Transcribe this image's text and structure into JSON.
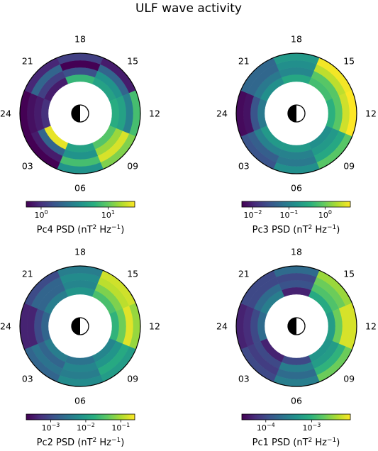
{
  "title": "ULF wave activity",
  "sun_icon": "half-shaded-sun-icon",
  "colormap": "viridis",
  "mlt_labels": [
    "18",
    "15",
    "12",
    "09",
    "06",
    "03",
    "24",
    "21"
  ],
  "chart_data": [
    {
      "type": "heatmap",
      "panel": "pc4",
      "label_main": "Pc4 PSD (nT",
      "label_sup1": "2",
      "label_mid": " Hz",
      "label_sup2": "−1",
      "label_end": ")",
      "colorbar_scale": "log",
      "colorbar_range": [
        0.6,
        25
      ],
      "colorbar_ticks": [
        {
          "value": 1,
          "base": "10",
          "exp": "0"
        },
        {
          "value": 10,
          "base": "10",
          "exp": "1"
        }
      ],
      "mlt_sectors": 8,
      "rings": 4,
      "values": [
        [
          7,
          1.5,
          0.6,
          1.2
        ],
        [
          5,
          4,
          2,
          0.8
        ],
        [
          6,
          5,
          3,
          8
        ],
        [
          9,
          14,
          20,
          12
        ],
        [
          5,
          4,
          8,
          4
        ],
        [
          22,
          2,
          0.8,
          0.6
        ],
        [
          1,
          0.8,
          0.7,
          0.6
        ],
        [
          0.8,
          1.2,
          2,
          0.9
        ]
      ]
    },
    {
      "type": "heatmap",
      "panel": "pc3",
      "label_main": "Pc3 PSD (nT",
      "label_sup1": "2",
      "label_mid": " Hz",
      "label_sup2": "−1",
      "label_end": ")",
      "colorbar_scale": "log",
      "colorbar_range": [
        0.005,
        5
      ],
      "colorbar_ticks": [
        {
          "value": 0.01,
          "base": "10",
          "exp": "−2"
        },
        {
          "value": 0.1,
          "base": "10",
          "exp": "−1"
        },
        {
          "value": 1,
          "base": "10",
          "exp": "0"
        }
      ],
      "mlt_sectors": 8,
      "rings": 4,
      "values": [
        [
          0.3,
          0.12,
          0.15,
          0.2
        ],
        [
          0.6,
          0.8,
          2.5,
          4.5
        ],
        [
          0.4,
          0.8,
          3,
          5
        ],
        [
          0.15,
          0.2,
          0.3,
          0.8
        ],
        [
          0.2,
          0.1,
          0.08,
          0.15
        ],
        [
          0.2,
          0.1,
          0.04,
          0.03
        ],
        [
          0.08,
          0.03,
          0.007,
          0.006
        ],
        [
          0.15,
          0.08,
          0.05,
          0.05
        ]
      ]
    },
    {
      "type": "heatmap",
      "panel": "pc2",
      "label_main": "Pc2 PSD (nT",
      "label_sup1": "2",
      "label_mid": " Hz",
      "label_sup2": "−1",
      "label_end": ")",
      "colorbar_scale": "log",
      "colorbar_range": [
        0.0002,
        0.25
      ],
      "colorbar_ticks": [
        {
          "value": 0.001,
          "base": "10",
          "exp": "−3"
        },
        {
          "value": 0.01,
          "base": "10",
          "exp": "−2"
        },
        {
          "value": 0.1,
          "base": "10",
          "exp": "−1"
        }
      ],
      "mlt_sectors": 8,
      "rings": 4,
      "values": [
        [
          0.008,
          0.005,
          0.006,
          0.004
        ],
        [
          0.03,
          0.06,
          0.12,
          0.15
        ],
        [
          0.02,
          0.05,
          0.18,
          0.08
        ],
        [
          0.005,
          0.008,
          0.015,
          0.01
        ],
        [
          0.003,
          0.005,
          0.004,
          0.006
        ],
        [
          0.004,
          0.002,
          0.003,
          0.002
        ],
        [
          0.002,
          0.001,
          0.0004,
          0.0004
        ],
        [
          0.004,
          0.002,
          0.002,
          0.001
        ]
      ]
    },
    {
      "type": "heatmap",
      "panel": "pc1",
      "label_main": "Pc1 PSD (nT",
      "label_sup1": "2",
      "label_mid": " Hz",
      "label_sup2": "−1",
      "label_end": ")",
      "colorbar_scale": "log",
      "colorbar_range": [
        3e-05,
        0.007
      ],
      "colorbar_ticks": [
        {
          "value": 0.0001,
          "base": "10",
          "exp": "−4"
        },
        {
          "value": 0.001,
          "base": "10",
          "exp": "−3"
        }
      ],
      "mlt_sectors": 8,
      "rings": 4,
      "values": [
        [
          5e-05,
          0.00012,
          0.0001,
          0.0002
        ],
        [
          0.0008,
          0.0015,
          0.002,
          0.003
        ],
        [
          0.0006,
          0.002,
          0.005,
          0.005
        ],
        [
          0.0005,
          0.0006,
          0.001,
          0.002
        ],
        [
          0.0001,
          0.0003,
          0.0002,
          0.0003
        ],
        [
          5e-05,
          0.0001,
          8e-05,
          0.0001
        ],
        [
          0.0002,
          0.0001,
          6e-05,
          5e-05
        ],
        [
          0.0003,
          0.0002,
          0.0001,
          0.0001
        ]
      ]
    }
  ]
}
